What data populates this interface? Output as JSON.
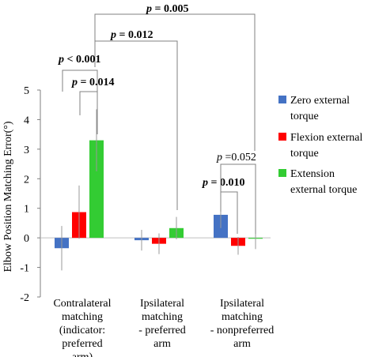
{
  "chart_data": {
    "type": "bar",
    "ylabel": "Elbow Position Matching Error(°)",
    "ylim": [
      -2,
      5
    ],
    "yticks": [
      "5",
      "4",
      "3",
      "2",
      "1",
      "0",
      "-1",
      "-2"
    ],
    "categories": [
      [
        "Contralateral",
        "matching",
        "(indicator:",
        "preferred",
        "arm)"
      ],
      [
        "Ipsilateral",
        "matching",
        "- preferred",
        "arm"
      ],
      [
        "Ipsilateral",
        "matching",
        "- nonpreferred",
        "arm"
      ]
    ],
    "legend_position": "right",
    "series": [
      {
        "name": [
          "Zero external",
          "torque"
        ],
        "color": "#4472C4",
        "values": [
          -0.35,
          -0.08,
          0.78
        ],
        "errors": [
          0.75,
          0.35,
          0.45
        ]
      },
      {
        "name": [
          "Flexion external",
          "torque"
        ],
        "color": "#FF0000",
        "values": [
          0.87,
          -0.2,
          -0.27
        ],
        "errors": [
          0.9,
          0.35,
          0.3
        ]
      },
      {
        "name": [
          "Extension",
          "external torque"
        ],
        "color": "#33CC33",
        "values": [
          3.3,
          0.33,
          -0.03
        ],
        "errors": [
          1.05,
          0.38,
          0.35
        ]
      }
    ],
    "annotations": [
      {
        "text_italic": "p",
        "text_rest": " = 0.005"
      },
      {
        "text_italic": "p",
        "text_rest": " = 0.012"
      },
      {
        "text_italic": "p",
        "text_rest": " < 0.001"
      },
      {
        "text_italic": "p",
        "text_rest": " = 0.014"
      },
      {
        "text_italic": "p",
        "text_rest": " = 0.010"
      },
      {
        "text_italic": "p",
        "text_rest": " =0.052"
      }
    ]
  }
}
